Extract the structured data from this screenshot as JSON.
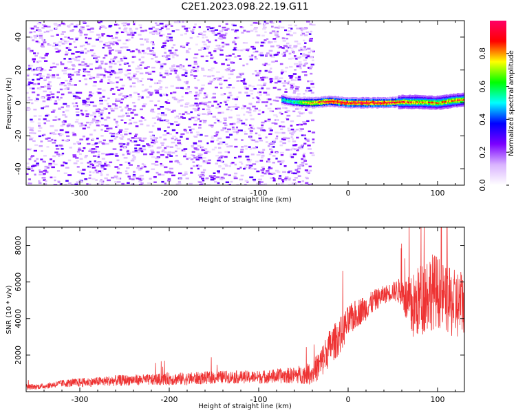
{
  "title": "C2E1.2023.098.22.19.G11",
  "chart_data": [
    {
      "type": "heatmap",
      "xlabel": "Height of straight line (km)",
      "ylabel": "Frequency (Hz)",
      "xlim": [
        -360,
        130
      ],
      "ylim": [
        -50,
        50
      ],
      "xticks": [
        -300,
        -200,
        -100,
        0,
        100
      ],
      "yticks": [
        -40,
        -20,
        0,
        20,
        40
      ],
      "colorbar": {
        "label": "Normalized spectral amplitude",
        "range": [
          0.0,
          1.0
        ],
        "ticks": [
          0.0,
          0.2,
          0.4,
          0.6,
          0.8
        ],
        "colors": [
          "#ffffff",
          "#d9b3ff",
          "#7b00ff",
          "#0000ff",
          "#00ffff",
          "#00ff00",
          "#ffff00",
          "#ff0000",
          "#ff0066"
        ]
      },
      "noise_region_x": [
        -360,
        -50
      ],
      "signal_band": [
        {
          "x": -75,
          "f": 2.0,
          "amp": 0.55
        },
        {
          "x": -60,
          "f": 0.5,
          "amp": 0.6
        },
        {
          "x": -40,
          "f": 0.0,
          "amp": 0.85
        },
        {
          "x": -20,
          "f": 1.0,
          "amp": 0.95
        },
        {
          "x": 0,
          "f": 0.0,
          "amp": 0.98
        },
        {
          "x": 40,
          "f": 0.0,
          "amp": 0.98
        },
        {
          "x": 60,
          "f": 0.5,
          "amp": 0.9
        },
        {
          "x": 80,
          "f": 0.5,
          "amp": 0.85
        },
        {
          "x": 100,
          "f": 0.0,
          "amp": 0.8
        },
        {
          "x": 120,
          "f": 1.5,
          "amp": 0.85
        },
        {
          "x": 130,
          "f": 2.0,
          "amp": 0.85
        }
      ]
    },
    {
      "type": "line",
      "xlabel": "Height of straight line (km)",
      "ylabel": "SNR (10 * v/v)",
      "xlim": [
        -360,
        130
      ],
      "ylim": [
        0,
        9000
      ],
      "xticks": [
        -300,
        -200,
        -100,
        0,
        100
      ],
      "yticks": [
        2000,
        4000,
        6000,
        8000
      ],
      "color": "#ee3333",
      "series": [
        {
          "x": [
            -360,
            -340,
            -320,
            -300,
            -280,
            -260,
            -240,
            -220,
            -200,
            -180,
            -160,
            -140,
            -120,
            -100,
            -80,
            -60,
            -40,
            -30,
            -20,
            -10,
            0,
            10,
            20,
            30,
            40,
            50,
            60,
            70,
            80,
            90,
            100,
            110,
            120,
            130
          ],
          "y": [
            250,
            300,
            450,
            500,
            550,
            600,
            650,
            650,
            700,
            700,
            750,
            800,
            800,
            800,
            850,
            900,
            1000,
            1600,
            2500,
            3000,
            3800,
            4300,
            4600,
            5000,
            5300,
            5500,
            5500,
            4500,
            5000,
            5500,
            5500,
            5000,
            4700,
            5000
          ],
          "spread": [
            150,
            150,
            200,
            250,
            250,
            300,
            300,
            300,
            350,
            350,
            350,
            350,
            350,
            350,
            400,
            450,
            600,
            900,
            1000,
            1000,
            900,
            800,
            700,
            600,
            500,
            500,
            800,
            1800,
            2000,
            2200,
            2000,
            1800,
            2000,
            1800
          ]
        }
      ]
    }
  ]
}
